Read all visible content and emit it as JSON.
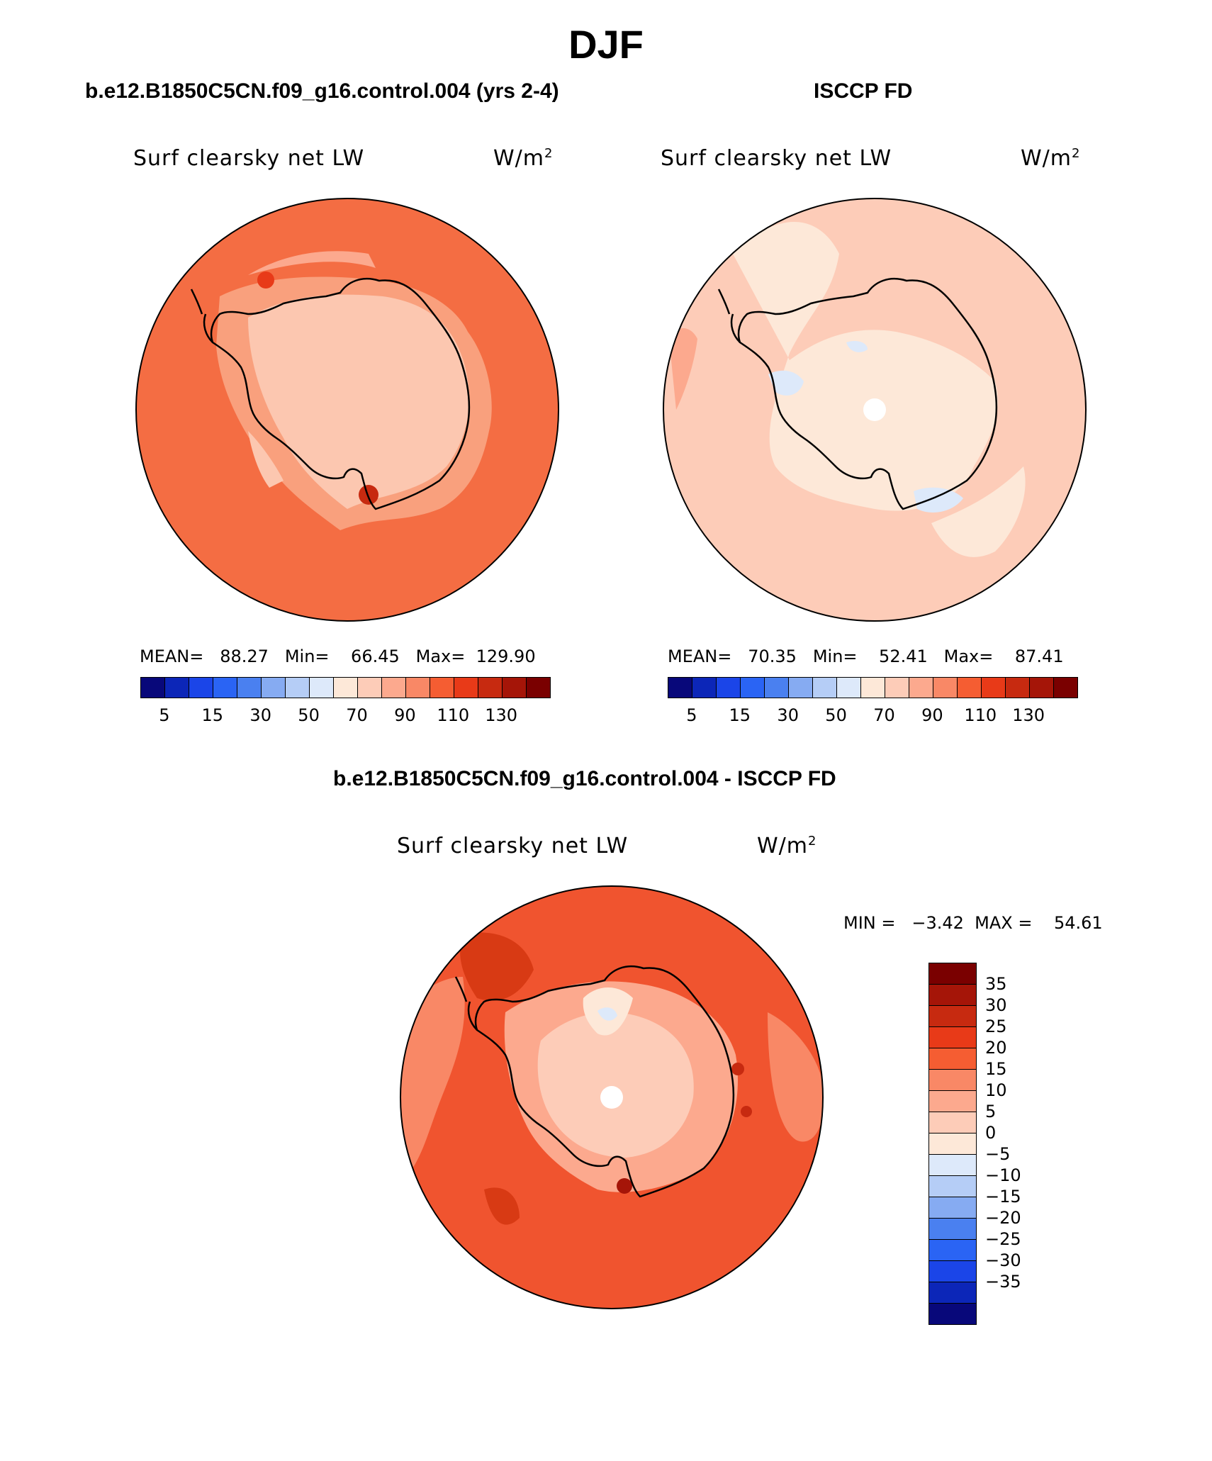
{
  "title": "DJF",
  "panels": {
    "top_left": {
      "header": "b.e12.B1850C5CN.f09_g16.control.004 (yrs 2-4)",
      "label": "Surf clearsky net LW",
      "unit": "W/m",
      "unit_exp": "2",
      "stats": "MEAN=   88.27   Min=    66.45   Max=  129.90",
      "base_color": "#f46d43"
    },
    "top_right": {
      "header": "ISCCP FD",
      "label": "Surf clearsky net LW",
      "unit": "W/m",
      "unit_exp": "2",
      "stats": "MEAN=   70.35   Min=    52.41   Max=    87.41",
      "base_color": "#fdccb8"
    },
    "bottom": {
      "header": "b.e12.B1850C5CN.f09_g16.control.004 - ISCCP FD",
      "label": "Surf clearsky net LW",
      "unit": "W/m",
      "unit_exp": "2",
      "minmax": "MIN =   −3.42  MAX =    54.61",
      "base_color": "#f0542f"
    }
  },
  "colorbar_top": {
    "colors": [
      "#08087a",
      "#0c26b8",
      "#1b45e8",
      "#2a64f4",
      "#4a80f0",
      "#86abf2",
      "#b5cdf6",
      "#dde9fa",
      "#fde8d8",
      "#fdccb8",
      "#fca98e",
      "#f98866",
      "#f55d32",
      "#e83a18",
      "#c72a10",
      "#a51508",
      "#7a0000"
    ],
    "tick_labels": [
      "5",
      "15",
      "30",
      "50",
      "70",
      "90",
      "110",
      "130"
    ]
  },
  "colorbar_diff": {
    "colors": [
      "#7a0000",
      "#a51508",
      "#c72a10",
      "#e83a18",
      "#f55d32",
      "#f98866",
      "#fca98e",
      "#fdccb8",
      "#fde8d8",
      "#dde9fa",
      "#b5cdf6",
      "#86abf2",
      "#4a80f0",
      "#2a64f4",
      "#1b45e8",
      "#0c26b8",
      "#08087a"
    ],
    "tick_labels": [
      "35",
      "30",
      "25",
      "20",
      "15",
      "10",
      "5",
      "0",
      "−5",
      "−10",
      "−15",
      "−20",
      "−25",
      "−30",
      "−35"
    ]
  }
}
